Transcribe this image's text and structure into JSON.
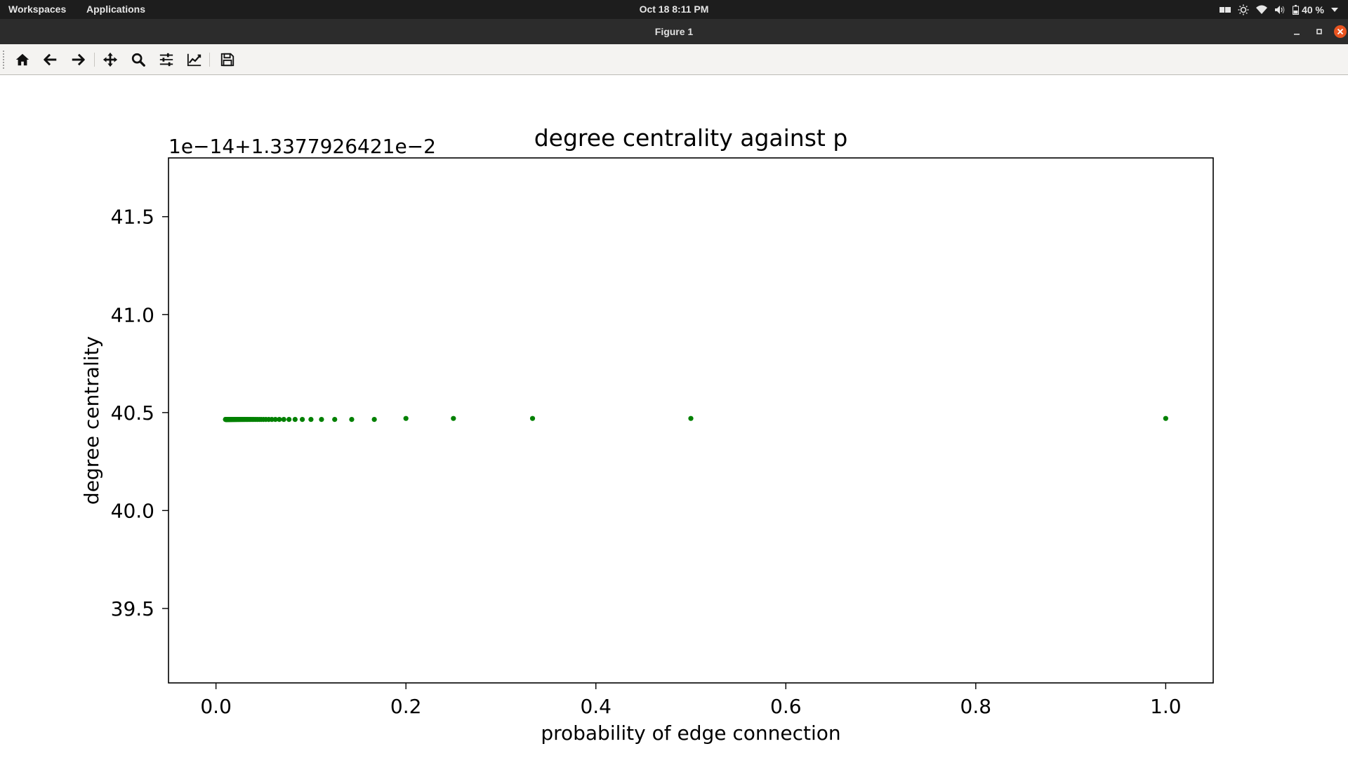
{
  "topbar": {
    "workspaces": "Workspaces",
    "applications": "Applications",
    "clock": "Oct 18   8:11 PM",
    "battery": "40 %"
  },
  "window": {
    "title": "Figure 1"
  },
  "toolbar": {
    "buttons": [
      "home-icon",
      "back-arrow-icon",
      "forward-arrow-icon",
      "pan-icon",
      "zoom-icon",
      "subplots-icon",
      "edit-axes-icon",
      "save-icon"
    ]
  },
  "chart_data": {
    "type": "scatter",
    "title": "degree centrality against p",
    "xlabel": "probability of edge connection",
    "ylabel": "degree centrality",
    "offset_text": "1e−14+1.3377926421e−2",
    "xlim": [
      -0.05,
      1.05
    ],
    "ylim": [
      39.12,
      41.8
    ],
    "xticks": [
      0.0,
      0.2,
      0.4,
      0.6,
      0.8,
      1.0
    ],
    "xtick_labels": [
      "0.0",
      "0.2",
      "0.4",
      "0.6",
      "0.8",
      "1.0"
    ],
    "yticks": [
      39.5,
      40.0,
      40.5,
      41.0,
      41.5
    ],
    "ytick_labels": [
      "39.5",
      "40.0",
      "40.5",
      "41.0",
      "41.5"
    ],
    "grid": false,
    "marker_color": "#008000",
    "series": [
      {
        "x": [
          1.0,
          0.5,
          0.3333,
          0.25,
          0.2,
          0.1667,
          0.1429,
          0.125,
          0.1111,
          0.1,
          0.0909,
          0.0833,
          0.0769,
          0.0714,
          0.0667,
          0.0625,
          0.0588,
          0.0556,
          0.0526,
          0.05,
          0.0476,
          0.0455,
          0.0435,
          0.0417,
          0.04,
          0.0385,
          0.037,
          0.0357,
          0.0345,
          0.0333,
          0.0323,
          0.0313,
          0.0303,
          0.0294,
          0.0286,
          0.0278,
          0.027,
          0.0263,
          0.0256,
          0.025,
          0.0244,
          0.0238,
          0.0233,
          0.0227,
          0.0222,
          0.0217,
          0.0213,
          0.0208,
          0.0204,
          0.02,
          0.0196,
          0.0192,
          0.0189,
          0.0185,
          0.0182,
          0.0179,
          0.0175,
          0.0172,
          0.0169,
          0.0167,
          0.0164,
          0.0161,
          0.0159,
          0.0156,
          0.0154,
          0.0152,
          0.0149,
          0.0147,
          0.0145,
          0.0143,
          0.0141,
          0.0139,
          0.0137,
          0.0135,
          0.0133,
          0.0132,
          0.013,
          0.0128,
          0.0127,
          0.0125,
          0.0123,
          0.0122,
          0.012,
          0.0119,
          0.0118,
          0.0116,
          0.0115,
          0.0114,
          0.0112,
          0.0111,
          0.011,
          0.0109,
          0.0108,
          0.0106,
          0.0105,
          0.0104,
          0.0103,
          0.0102,
          0.0101,
          0.01
        ],
        "y": [
          40.47,
          40.47,
          40.47,
          40.47,
          40.47,
          40.465,
          40.465,
          40.465,
          40.465,
          40.465,
          40.465,
          40.465,
          40.465,
          40.465,
          40.465,
          40.465,
          40.465,
          40.465,
          40.465,
          40.465,
          40.465,
          40.465,
          40.465,
          40.465,
          40.465,
          40.465,
          40.465,
          40.465,
          40.465,
          40.465,
          40.465,
          40.465,
          40.465,
          40.465,
          40.465,
          40.465,
          40.465,
          40.465,
          40.465,
          40.465,
          40.465,
          40.465,
          40.465,
          40.465,
          40.465,
          40.465,
          40.465,
          40.465,
          40.465,
          40.465,
          40.465,
          40.465,
          40.465,
          40.465,
          40.465,
          40.465,
          40.465,
          40.465,
          40.465,
          40.465,
          40.465,
          40.465,
          40.465,
          40.465,
          40.465,
          40.465,
          40.465,
          40.465,
          40.465,
          40.465,
          40.465,
          40.465,
          40.465,
          40.465,
          40.465,
          40.465,
          40.465,
          40.465,
          40.465,
          40.465,
          40.465,
          40.465,
          40.465,
          40.465,
          40.465,
          40.465,
          40.465,
          40.465,
          40.465,
          40.465,
          40.465,
          40.465,
          40.465,
          40.465,
          40.465,
          40.465,
          40.465,
          40.465,
          40.465,
          40.465
        ]
      }
    ]
  }
}
